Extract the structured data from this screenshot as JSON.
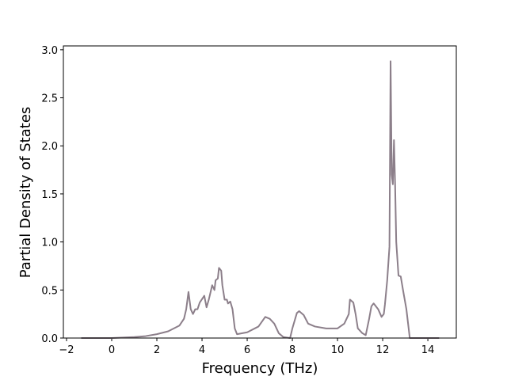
{
  "chart_data": {
    "type": "line",
    "xlabel": "Frequency (THz)",
    "ylabel": "Partial Density of States",
    "x": [
      -1.35,
      0,
      0.5,
      1,
      1.5,
      2,
      2.5,
      3,
      3.2,
      3.3,
      3.4,
      3.5,
      3.6,
      3.7,
      3.8,
      3.9,
      4.1,
      4.2,
      4.3,
      4.45,
      4.55,
      4.6,
      4.7,
      4.75,
      4.85,
      4.9,
      5.0,
      5.1,
      5.15,
      5.25,
      5.35,
      5.45,
      5.55,
      6,
      6.5,
      6.8,
      7.0,
      7.2,
      7.4,
      7.6,
      7.9,
      8.0,
      8.2,
      8.3,
      8.5,
      8.7,
      9.0,
      9.5,
      10,
      10.3,
      10.5,
      10.55,
      10.7,
      10.8,
      10.9,
      11.1,
      11.25,
      11.4,
      11.5,
      11.6,
      11.8,
      11.95,
      12.05,
      12.1,
      12.2,
      12.3,
      12.35,
      12.4,
      12.45,
      12.5,
      12.55,
      12.6,
      12.7,
      12.8,
      12.9,
      13.05,
      13.2,
      13.5,
      14.5
    ],
    "series": [
      {
        "color": "#8c7f8a",
        "values": [
          0,
          0,
          0.005,
          0.01,
          0.02,
          0.04,
          0.07,
          0.13,
          0.2,
          0.3,
          0.48,
          0.3,
          0.25,
          0.3,
          0.3,
          0.37,
          0.44,
          0.32,
          0.4,
          0.55,
          0.5,
          0.6,
          0.62,
          0.73,
          0.7,
          0.55,
          0.4,
          0.4,
          0.36,
          0.38,
          0.3,
          0.1,
          0.04,
          0.06,
          0.12,
          0.22,
          0.2,
          0.15,
          0.05,
          0.01,
          0.0,
          0.1,
          0.26,
          0.28,
          0.24,
          0.15,
          0.12,
          0.1,
          0.1,
          0.15,
          0.25,
          0.4,
          0.37,
          0.25,
          0.1,
          0.05,
          0.03,
          0.2,
          0.33,
          0.36,
          0.3,
          0.22,
          0.25,
          0.35,
          0.6,
          0.95,
          2.88,
          1.7,
          1.6,
          2.06,
          1.6,
          1.0,
          0.65,
          0.64,
          0.5,
          0.3,
          0.0,
          0,
          0
        ]
      }
    ],
    "xlim": [
      -2.14,
      15.26
    ],
    "ylim": [
      0,
      3.04
    ],
    "xticks": [
      {
        "value": -2,
        "label": "−2"
      },
      0,
      2,
      4,
      6,
      8,
      10,
      12,
      14
    ],
    "yticks": [
      {
        "value": 0,
        "label": "0.0"
      },
      0.5,
      {
        "value": 1,
        "label": "1.0"
      },
      1.5,
      {
        "value": 2,
        "label": "2.0"
      },
      2.5,
      {
        "value": 3,
        "label": "3.0"
      }
    ]
  }
}
